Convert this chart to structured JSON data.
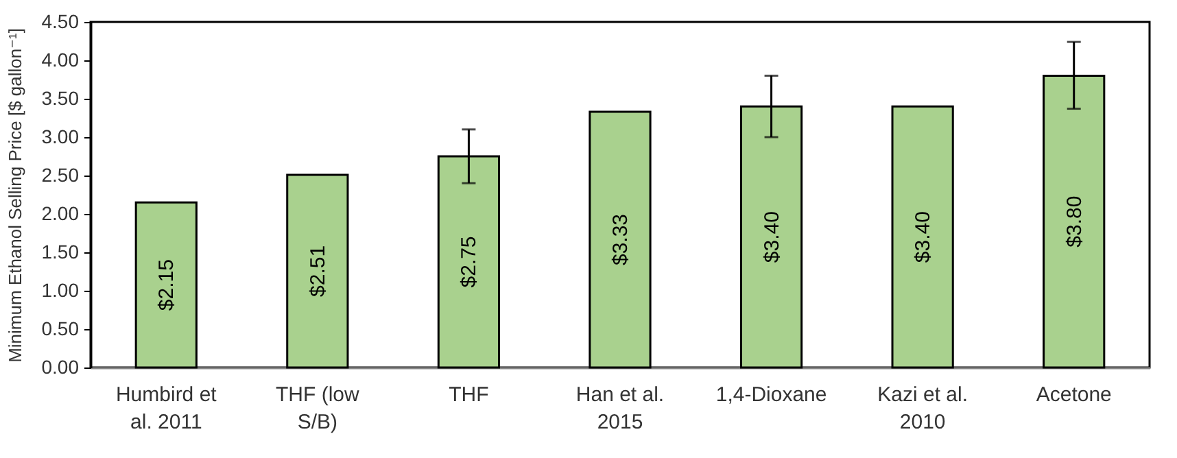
{
  "chart_data": {
    "type": "bar",
    "ylabel": "Minimum Ethanol Selling Price [$ gallon⁻¹]",
    "categories": [
      "Humbird et al. 2011",
      "THF (low S/B)",
      "THF",
      "Han et al. 2015",
      "1,4-Dioxane",
      "Kazi et al. 2010",
      "Acetone"
    ],
    "values": [
      2.15,
      2.51,
      2.75,
      3.33,
      3.4,
      3.4,
      3.8
    ],
    "value_labels": [
      "$2.15",
      "$2.51",
      "$2.75",
      "$3.33",
      "$3.40",
      "$3.40",
      "$3.80"
    ],
    "errors": [
      null,
      null,
      [
        2.4,
        3.1
      ],
      null,
      [
        3.0,
        3.8
      ],
      null,
      [
        3.37,
        4.24
      ]
    ],
    "color": "#a9d18e",
    "ylim": [
      0,
      4.5
    ],
    "yticks": [
      {
        "value": 0,
        "label": "0.00"
      },
      {
        "value": 0.5,
        "label": "0.50"
      },
      {
        "value": 1,
        "label": "1.00"
      },
      {
        "value": 1.5,
        "label": "1.50"
      },
      {
        "value": 2,
        "label": "2.00"
      },
      {
        "value": 2.5,
        "label": "2.50"
      },
      {
        "value": 3,
        "label": "3.00"
      },
      {
        "value": 3.5,
        "label": "3.50"
      },
      {
        "value": 4,
        "label": "4.00"
      },
      {
        "value": 4.5,
        "label": "4.50"
      }
    ],
    "grid": false
  }
}
